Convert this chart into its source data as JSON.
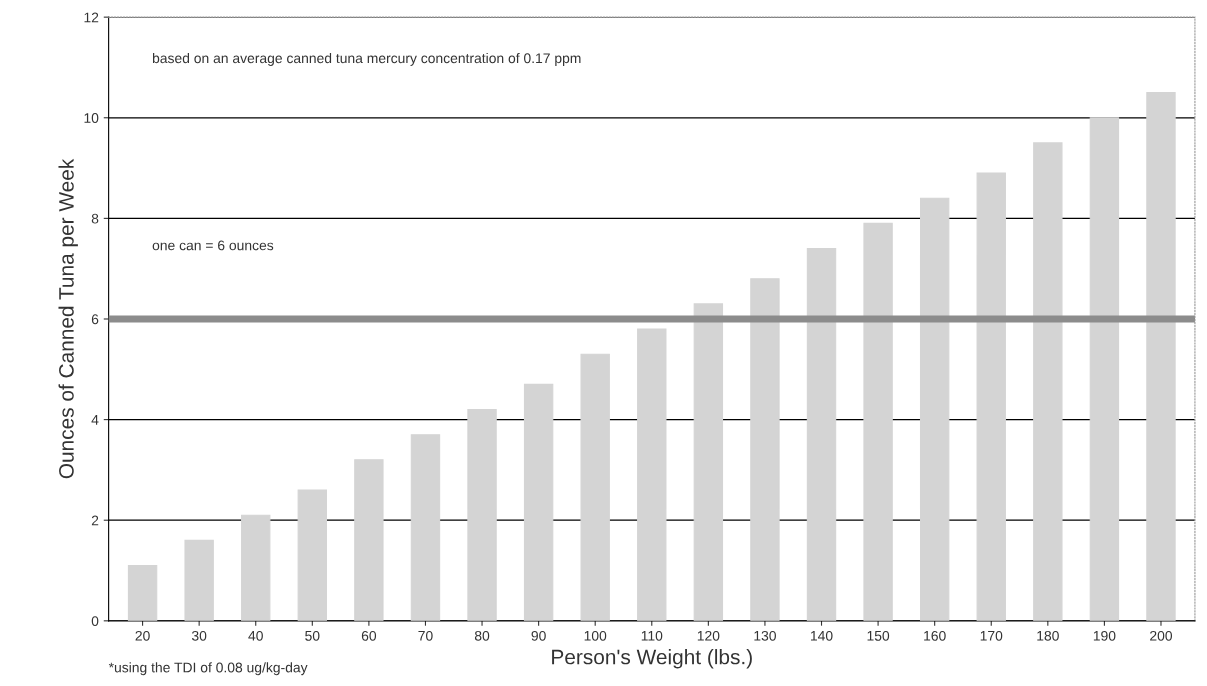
{
  "chart_data": {
    "type": "bar",
    "xlabel": "Person's Weight (lbs.)",
    "ylabel": "Ounces of Canned Tuna per Week",
    "categories": [
      "20",
      "30",
      "40",
      "50",
      "60",
      "70",
      "80",
      "90",
      "100",
      "110",
      "120",
      "130",
      "140",
      "150",
      "160",
      "170",
      "180",
      "190",
      "200"
    ],
    "values": [
      1.1,
      1.6,
      2.1,
      2.6,
      3.2,
      3.7,
      4.2,
      4.7,
      5.3,
      5.8,
      6.3,
      6.8,
      7.4,
      7.9,
      8.4,
      8.9,
      9.5,
      10.0,
      10.5
    ],
    "color": "#d4d4d4",
    "ylim": [
      0,
      12
    ],
    "yticks": [
      0,
      2,
      4,
      6,
      8,
      10,
      12
    ],
    "grid": "y",
    "legend": false,
    "ref_lines": [
      {
        "axis": "y",
        "value": 6,
        "color": "#8c8c8c"
      }
    ],
    "annotations": [
      "based on an average canned tuna mercury concentration of 0.17 ppm",
      "*using the TDI of 0.08 ug/kg-day",
      "one can = 6 ounces"
    ]
  }
}
